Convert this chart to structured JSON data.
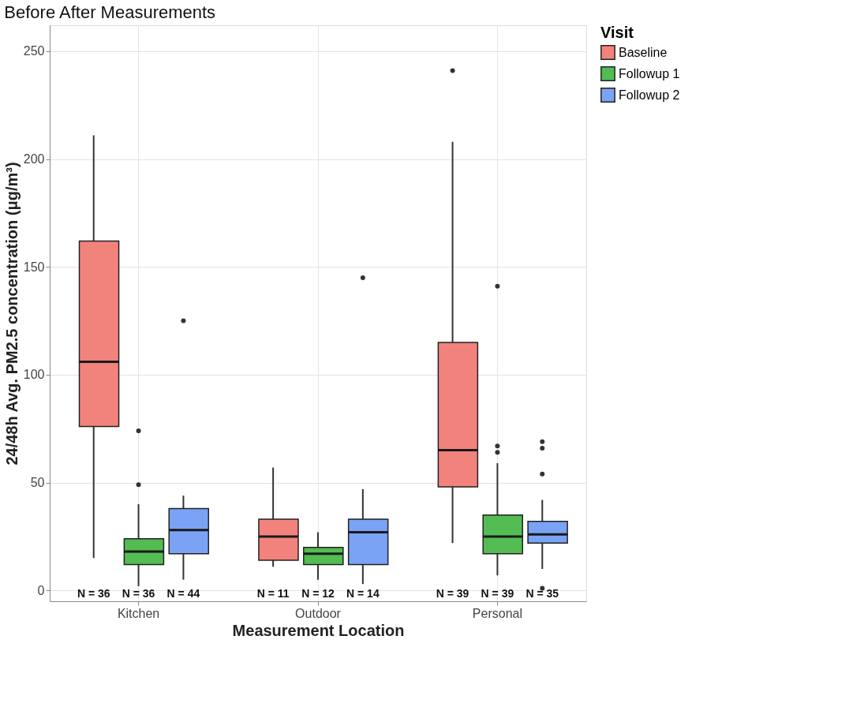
{
  "chart_data": {
    "type": "box",
    "title": "Before After Measurements",
    "xlabel": "Measurement Location",
    "ylabel": "24/48h Avg. PM2.5 concentration (μg/m³)",
    "legend_title": "Visit",
    "categories": [
      "Kitchen",
      "Outdoor",
      "Personal"
    ],
    "series": [
      {
        "name": "Baseline",
        "color": "#f2837c",
        "boxes": [
          {
            "low": 15,
            "q1": 76,
            "median": 106,
            "q3": 162,
            "high": 211
          },
          {
            "low": 11,
            "q1": 14,
            "median": 25,
            "q3": 33,
            "high": 57
          },
          {
            "low": 22,
            "q1": 48,
            "median": 65,
            "q3": 115,
            "high": 208,
            "outliers": [
              241
            ]
          }
        ]
      },
      {
        "name": "Followup 1",
        "color": "#53bc53",
        "boxes": [
          {
            "low": 2,
            "q1": 12,
            "median": 18,
            "q3": 24,
            "high": 40,
            "outliers": [
              49,
              74
            ]
          },
          {
            "low": 5,
            "q1": 12,
            "median": 17,
            "q3": 20,
            "high": 27
          },
          {
            "low": 7,
            "q1": 17,
            "median": 25,
            "q3": 35,
            "high": 59,
            "outliers": [
              64,
              67,
              141
            ]
          }
        ]
      },
      {
        "name": "Followup 2",
        "color": "#7aa3f5",
        "boxes": [
          {
            "low": 5,
            "q1": 17,
            "median": 28,
            "q3": 38,
            "high": 44,
            "outliers": [
              125
            ]
          },
          {
            "low": 3,
            "q1": 12,
            "median": 27,
            "q3": 33,
            "high": 47,
            "outliers": [
              145
            ]
          },
          {
            "low": 10,
            "q1": 22,
            "median": 26,
            "q3": 32,
            "high": 42,
            "outliers": [
              1,
              54,
              66,
              69
            ]
          }
        ]
      }
    ],
    "annotations": [
      "N = 36",
      "N = 36",
      "N = 44",
      "N = 11",
      "N = 12",
      "N = 14",
      "N = 39",
      "N = 39",
      "N = 35"
    ],
    "ylim": [
      -5,
      262
    ],
    "yticks": [
      0,
      50,
      100,
      150,
      200,
      250
    ],
    "grid": true,
    "legend": "right"
  }
}
